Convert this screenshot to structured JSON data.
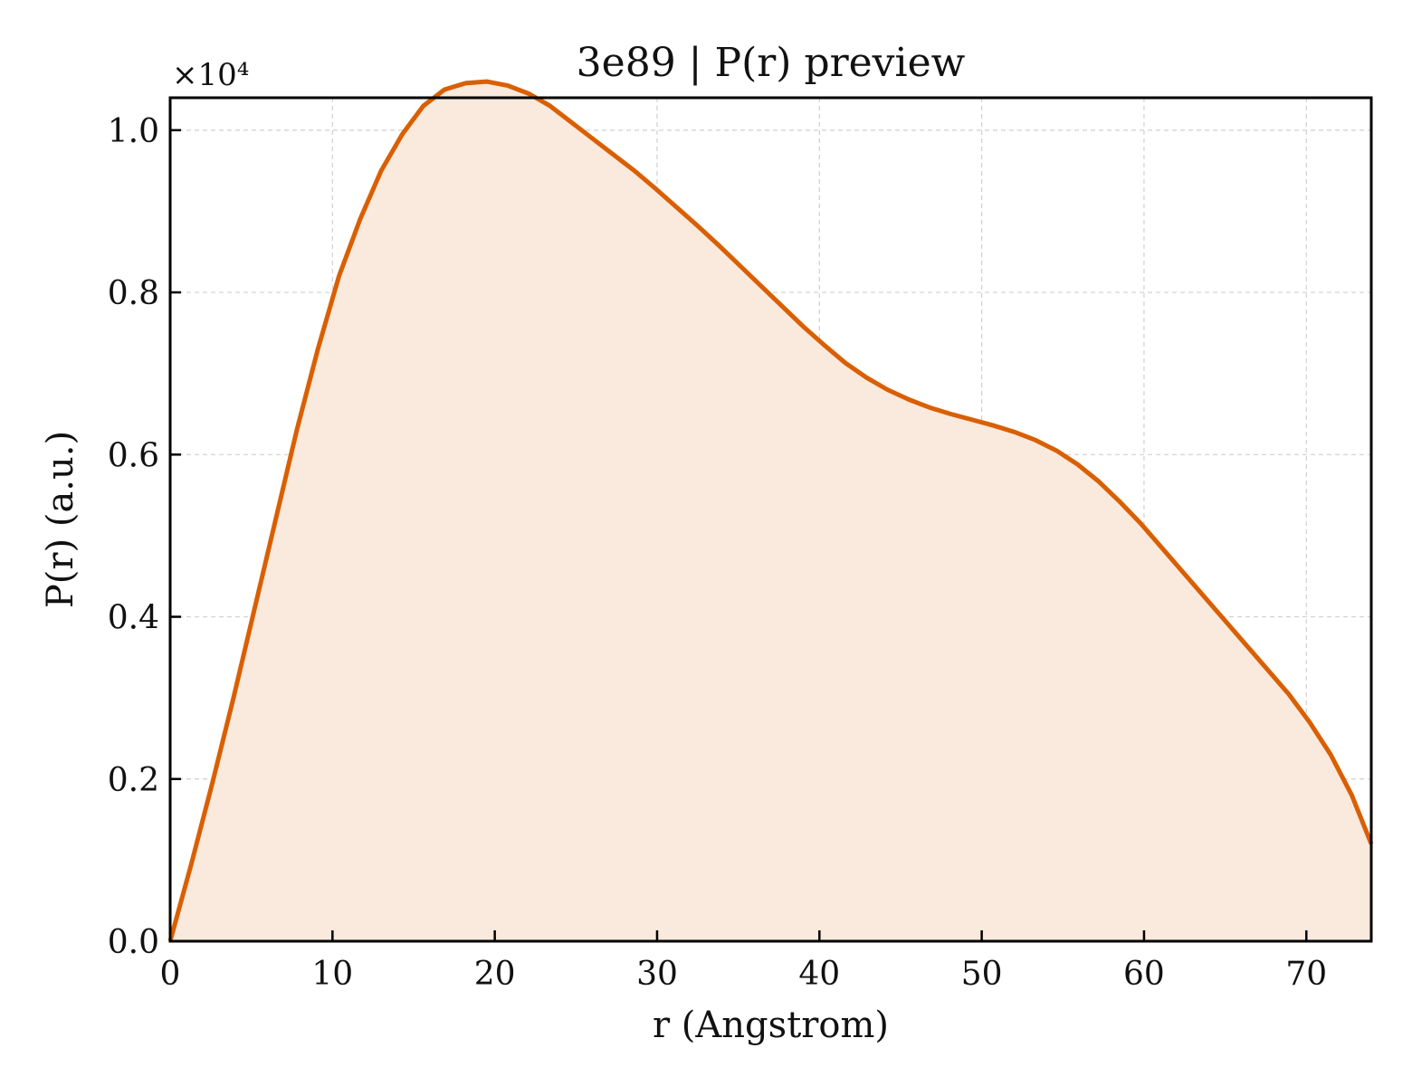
{
  "chart_data": {
    "type": "area",
    "title": "3e89 | P(r) preview",
    "xlabel": "r (Angstrom)",
    "ylabel": "P(r) (a.u.)",
    "y_offset_label": "×10⁴",
    "y_scale_factor": 10000,
    "xlim": [
      0,
      74
    ],
    "ylim": [
      0,
      1.04
    ],
    "xticks": [
      0,
      10,
      20,
      30,
      40,
      50,
      60,
      70
    ],
    "xtick_labels": [
      "0",
      "10",
      "20",
      "30",
      "40",
      "50",
      "60",
      "70"
    ],
    "yticks": [
      0.0,
      0.2,
      0.4,
      0.6,
      0.8,
      1.0
    ],
    "ytick_labels": [
      "0.0",
      "0.2",
      "0.4",
      "0.6",
      "0.8",
      "1.0"
    ],
    "grid": true,
    "line_color": "#d95f02",
    "fill_color": "#fae9dd",
    "series": [
      {
        "x": [
          0,
          1.3,
          2.6,
          3.9,
          5.2,
          6.5,
          7.8,
          9.1,
          10.4,
          11.7,
          13.0,
          14.3,
          15.6,
          16.9,
          18.2,
          19.5,
          20.8,
          22.1,
          23.4,
          24.7,
          26.0,
          27.3,
          28.6,
          29.9,
          31.2,
          32.5,
          33.8,
          35.1,
          36.4,
          37.7,
          39.0,
          40.3,
          41.6,
          42.9,
          44.2,
          45.5,
          46.8,
          48.1,
          49.4,
          50.7,
          52.0,
          53.3,
          54.6,
          55.9,
          57.2,
          58.5,
          59.8,
          61.1,
          62.4,
          63.7,
          65.0,
          66.3,
          67.6,
          68.9,
          70.2,
          71.5,
          72.8,
          74.0
        ],
        "y": [
          0.0,
          0.095,
          0.195,
          0.3,
          0.41,
          0.52,
          0.63,
          0.73,
          0.82,
          0.89,
          0.95,
          0.995,
          1.03,
          1.05,
          1.058,
          1.06,
          1.055,
          1.045,
          1.03,
          1.01,
          0.99,
          0.97,
          0.95,
          0.928,
          0.905,
          0.882,
          0.858,
          0.833,
          0.808,
          0.783,
          0.758,
          0.735,
          0.713,
          0.695,
          0.68,
          0.668,
          0.658,
          0.65,
          0.643,
          0.636,
          0.628,
          0.618,
          0.605,
          0.588,
          0.567,
          0.542,
          0.515,
          0.485,
          0.455,
          0.425,
          0.395,
          0.365,
          0.335,
          0.305,
          0.27,
          0.23,
          0.18,
          0.12
        ]
      }
    ]
  }
}
